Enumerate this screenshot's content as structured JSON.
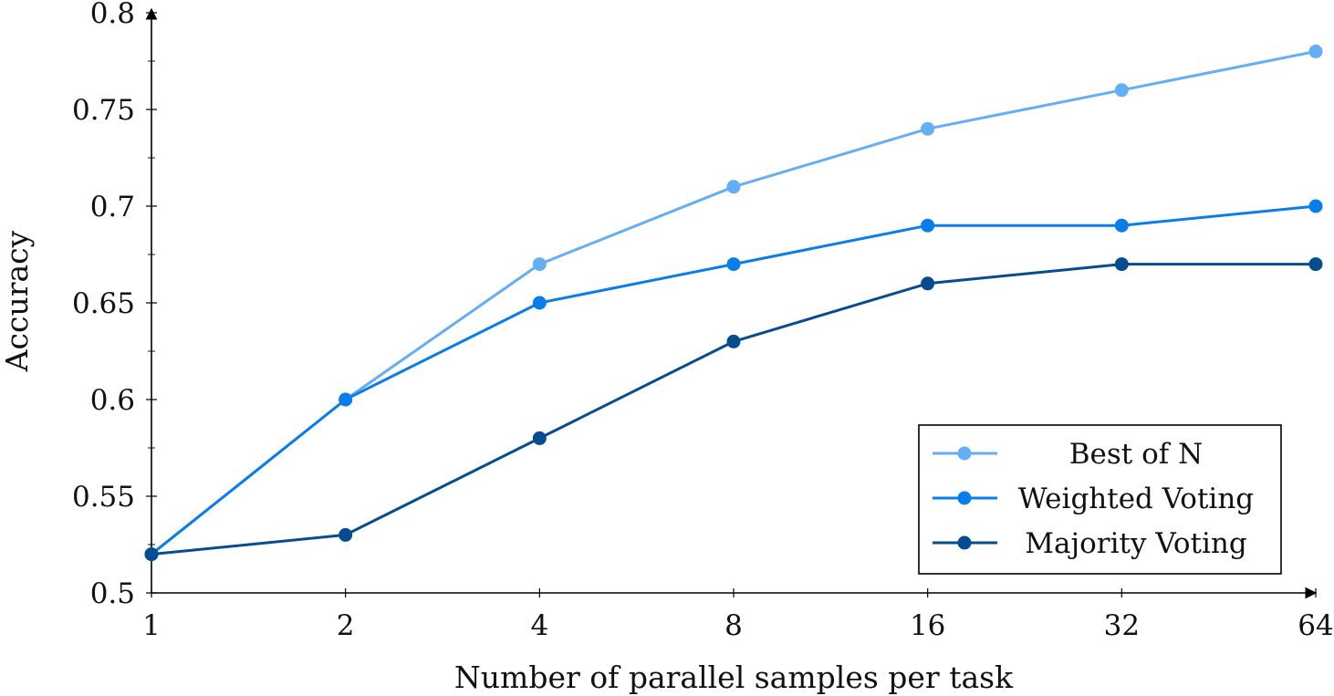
{
  "chart_data": {
    "type": "line",
    "categories": [
      "1",
      "2",
      "4",
      "8",
      "16",
      "32",
      "64"
    ],
    "xlabel": "Number of parallel samples per task",
    "ylabel": "Accuracy",
    "ylim": [
      0.5,
      0.8
    ],
    "yticks": [
      "0.5",
      "0.55",
      "0.6",
      "0.65",
      "0.7",
      "0.75",
      "0.8"
    ],
    "grid": false,
    "legend_position": "bottom-right",
    "series": [
      {
        "name": "Best of N",
        "color": "#64aff3",
        "values": [
          0.52,
          0.6,
          0.67,
          0.71,
          0.74,
          0.76,
          0.78
        ]
      },
      {
        "name": "Weighted Voting",
        "color": "#0a7de8",
        "values": [
          0.52,
          0.6,
          0.65,
          0.67,
          0.69,
          0.69,
          0.7
        ]
      },
      {
        "name": "Majority Voting",
        "color": "#064c8e",
        "values": [
          0.52,
          0.53,
          0.58,
          0.63,
          0.66,
          0.67,
          0.67
        ]
      }
    ]
  }
}
